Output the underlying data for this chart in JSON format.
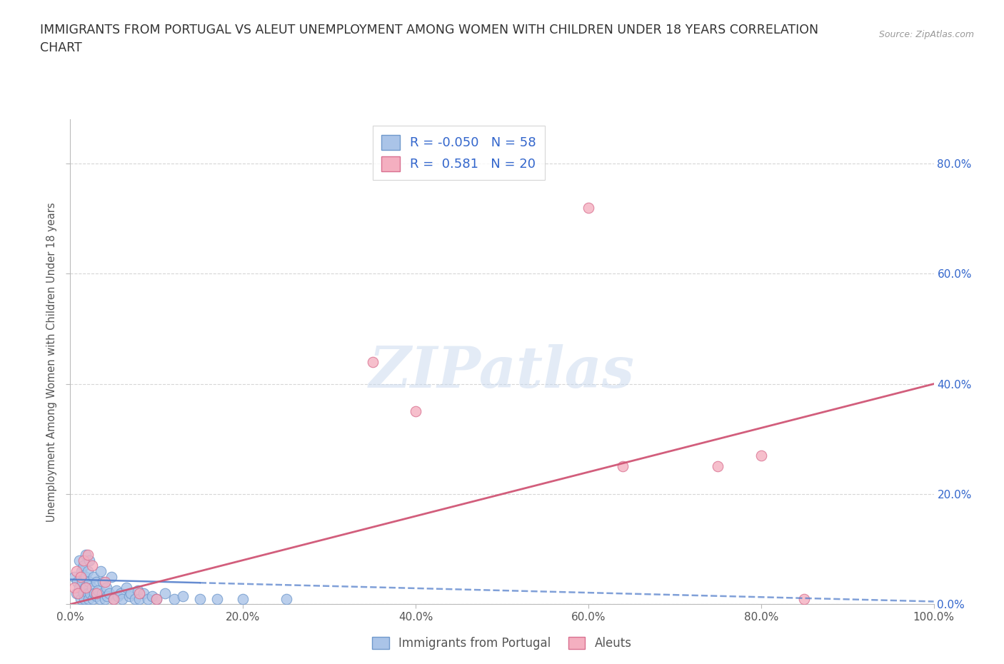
{
  "title_line1": "IMMIGRANTS FROM PORTUGAL VS ALEUT UNEMPLOYMENT AMONG WOMEN WITH CHILDREN UNDER 18 YEARS CORRELATION",
  "title_line2": "CHART",
  "source": "Source: ZipAtlas.com",
  "ylabel": "Unemployment Among Women with Children Under 18 years",
  "xlim": [
    0,
    1.0
  ],
  "ylim": [
    0,
    0.88
  ],
  "yticks": [
    0.0,
    0.2,
    0.4,
    0.6,
    0.8
  ],
  "ytick_labels": [
    "0.0%",
    "20.0%",
    "40.0%",
    "60.0%",
    "80.0%"
  ],
  "xticks": [
    0.0,
    0.2,
    0.4,
    0.6,
    0.8,
    1.0
  ],
  "xtick_labels": [
    "0.0%",
    "20.0%",
    "40.0%",
    "60.0%",
    "80.0%",
    "100.0%"
  ],
  "blue_color": "#aac4e8",
  "pink_color": "#f4afc0",
  "blue_edge": "#7099cc",
  "pink_edge": "#d97090",
  "trend_blue": "#5580cc",
  "trend_pink": "#d05575",
  "R_blue": -0.05,
  "N_blue": 58,
  "R_pink": 0.581,
  "N_pink": 20,
  "legend_text_color": "#3366cc",
  "watermark": "ZIPatlas",
  "blue_scatter_x": [
    0.005,
    0.007,
    0.008,
    0.01,
    0.01,
    0.012,
    0.013,
    0.014,
    0.015,
    0.015,
    0.016,
    0.017,
    0.018,
    0.018,
    0.02,
    0.02,
    0.021,
    0.022,
    0.022,
    0.023,
    0.025,
    0.026,
    0.027,
    0.028,
    0.03,
    0.03,
    0.032,
    0.034,
    0.035,
    0.037,
    0.038,
    0.04,
    0.042,
    0.043,
    0.045,
    0.048,
    0.05,
    0.053,
    0.055,
    0.058,
    0.06,
    0.065,
    0.068,
    0.07,
    0.075,
    0.078,
    0.08,
    0.085,
    0.09,
    0.095,
    0.1,
    0.11,
    0.12,
    0.13,
    0.15,
    0.17,
    0.2,
    0.25
  ],
  "blue_scatter_y": [
    0.05,
    0.02,
    0.04,
    0.03,
    0.08,
    0.01,
    0.06,
    0.04,
    0.02,
    0.07,
    0.01,
    0.03,
    0.05,
    0.09,
    0.02,
    0.06,
    0.01,
    0.04,
    0.08,
    0.02,
    0.03,
    0.01,
    0.05,
    0.02,
    0.015,
    0.04,
    0.025,
    0.01,
    0.06,
    0.02,
    0.04,
    0.01,
    0.03,
    0.015,
    0.02,
    0.05,
    0.01,
    0.025,
    0.015,
    0.02,
    0.01,
    0.03,
    0.015,
    0.02,
    0.01,
    0.025,
    0.01,
    0.02,
    0.01,
    0.015,
    0.01,
    0.02,
    0.01,
    0.015,
    0.01,
    0.01,
    0.01,
    0.01
  ],
  "pink_scatter_x": [
    0.005,
    0.007,
    0.009,
    0.012,
    0.015,
    0.018,
    0.02,
    0.025,
    0.03,
    0.04,
    0.05,
    0.08,
    0.1,
    0.35,
    0.4,
    0.6,
    0.64,
    0.75,
    0.8,
    0.85
  ],
  "pink_scatter_y": [
    0.03,
    0.06,
    0.02,
    0.05,
    0.08,
    0.03,
    0.09,
    0.07,
    0.02,
    0.04,
    0.01,
    0.02,
    0.01,
    0.44,
    0.35,
    0.72,
    0.25,
    0.25,
    0.27,
    0.01
  ],
  "pink_trend_x0": 0.0,
  "pink_trend_y0": 0.0,
  "pink_trend_x1": 1.0,
  "pink_trend_y1": 0.4,
  "blue_trend_x0": 0.0,
  "blue_trend_y0": 0.045,
  "blue_trend_x1": 1.0,
  "blue_trend_y1": 0.005
}
